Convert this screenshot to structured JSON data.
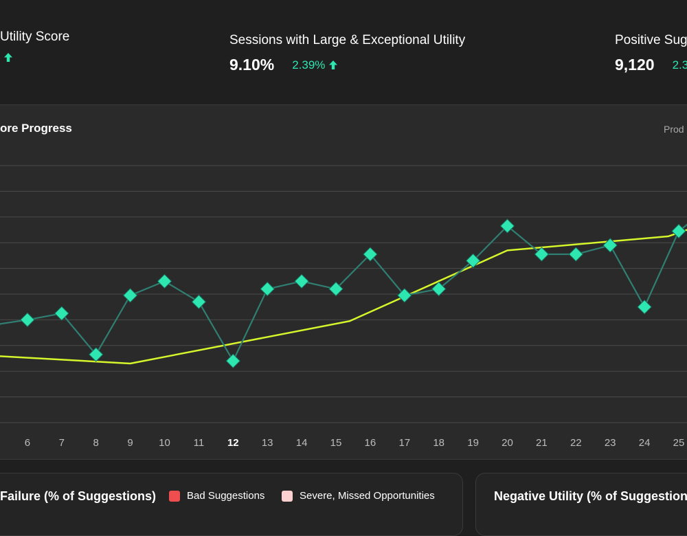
{
  "metrics": [
    {
      "label": "Utility Score",
      "value": "",
      "delta": ""
    },
    {
      "label": "Sessions with Large & Exceptional Utility",
      "value": "9.10%",
      "delta": "2.39%"
    },
    {
      "label": "Positive Sug",
      "value": "9,120",
      "delta": "2.3"
    }
  ],
  "colors": {
    "background": "#1f1f1f",
    "panel": "#2a2a2a",
    "accent_green": "#2ee6b0",
    "series_line": "#2f7f72",
    "trend_line": "#d6f52b",
    "grid": "#4a4a4a",
    "bad_suggestions": "#ef4e4e",
    "missed_opportunities": "#ffd0d0"
  },
  "chart": {
    "title": "ore Progress",
    "filter_label": "Prod"
  },
  "chart_data": {
    "type": "line",
    "x": [
      5,
      6,
      7,
      8,
      9,
      10,
      11,
      12,
      13,
      14,
      15,
      16,
      17,
      18,
      19,
      20,
      21,
      22,
      23,
      24,
      25,
      26
    ],
    "tick_labels": [
      "6",
      "7",
      "8",
      "9",
      "10",
      "11",
      "12",
      "13",
      "14",
      "15",
      "16",
      "17",
      "18",
      "19",
      "20",
      "21",
      "22",
      "23",
      "24",
      "25"
    ],
    "highlighted_tick": "12",
    "ylim": [
      0,
      10
    ],
    "grid_lines": 11,
    "series": [
      {
        "name": "",
        "style": "line-with-diamond-markers",
        "values": [
          3.8,
          4.0,
          4.25,
          2.65,
          4.95,
          5.5,
          4.7,
          2.4,
          5.2,
          5.5,
          5.2,
          6.55,
          4.95,
          5.2,
          6.3,
          7.65,
          6.55,
          6.55,
          6.9,
          4.5,
          7.45,
          8.5
        ]
      },
      {
        "name": "",
        "style": "trend-line",
        "x": [
          5,
          9,
          15.4,
          20,
          24.7,
          26
        ],
        "values": [
          2.6,
          2.3,
          3.95,
          6.7,
          7.25,
          7.85
        ]
      }
    ]
  },
  "bottom_cards": [
    {
      "title": "Failure (% of Suggestions)",
      "legend": [
        {
          "label": "Bad Suggestions"
        },
        {
          "label": "Severe, Missed Opportunities"
        }
      ]
    },
    {
      "title": "Negative Utility (% of Suggestions"
    }
  ]
}
